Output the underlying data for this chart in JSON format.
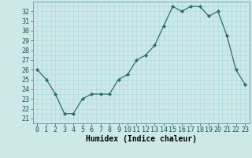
{
  "x": [
    0,
    1,
    2,
    3,
    4,
    5,
    6,
    7,
    8,
    9,
    10,
    11,
    12,
    13,
    14,
    15,
    16,
    17,
    18,
    19,
    20,
    21,
    22,
    23
  ],
  "y": [
    26.0,
    25.0,
    23.5,
    21.5,
    21.5,
    23.0,
    23.5,
    23.5,
    23.5,
    25.0,
    25.5,
    27.0,
    27.5,
    28.5,
    30.5,
    32.5,
    32.0,
    32.5,
    32.5,
    31.5,
    32.0,
    29.5,
    26.0,
    24.5
  ],
  "bg_color": "#cce9e8",
  "line_color": "#2d6e6e",
  "marker_color": "#2d6e6e",
  "grid_color": "#a8d8d8",
  "xlabel": "Humidex (Indice chaleur)",
  "ylabel_ticks": [
    21,
    22,
    23,
    24,
    25,
    26,
    27,
    28,
    29,
    30,
    31,
    32
  ],
  "ylim": [
    20.5,
    33.0
  ],
  "xlim": [
    -0.5,
    23.5
  ],
  "tick_fontsize": 6.0,
  "xlabel_fontsize": 7.0
}
